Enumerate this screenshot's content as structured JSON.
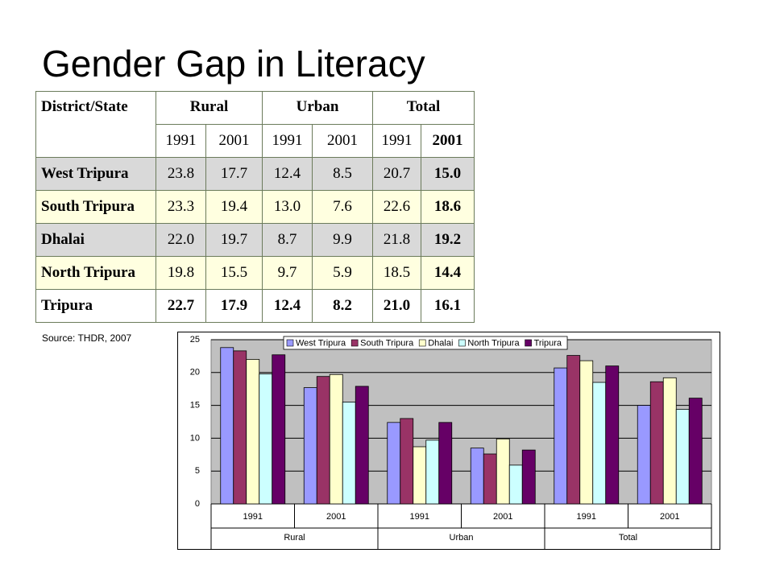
{
  "title": "Gender Gap in Literacy",
  "table": {
    "district_header": "District/State",
    "groups": [
      "Rural",
      "Urban",
      "Total"
    ],
    "years": [
      "1991",
      "2001",
      "1991",
      "2001",
      "1991",
      "2001"
    ],
    "rows": [
      [
        "West Tripura",
        "23.8",
        "17.7",
        "12.4",
        "8.5",
        "20.7",
        "15.0"
      ],
      [
        "South Tripura",
        "23.3",
        "19.4",
        "13.0",
        "7.6",
        "22.6",
        "18.6"
      ],
      [
        "Dhalai",
        "22.0",
        "19.7",
        "8.7",
        "9.9",
        "21.8",
        "19.2"
      ],
      [
        "North Tripura",
        "19.8",
        "15.5",
        "9.7",
        "5.9",
        "18.5",
        "14.4"
      ],
      [
        "Tripura",
        "22.7",
        "17.9",
        "12.4",
        "8.2",
        "21.0",
        "16.1"
      ]
    ]
  },
  "source": "Source: THDR, 2007",
  "chart_data": {
    "type": "bar",
    "categories": [
      "1991",
      "2001",
      "1991",
      "2001",
      "1991",
      "2001"
    ],
    "groups": [
      "Rural",
      "Urban",
      "Total"
    ],
    "series": [
      {
        "name": "West Tripura",
        "color": "#9999ff",
        "values": [
          23.8,
          17.7,
          12.4,
          8.5,
          20.7,
          15.0
        ]
      },
      {
        "name": "South Tripura",
        "color": "#993366",
        "values": [
          23.3,
          19.4,
          13.0,
          7.6,
          22.6,
          18.6
        ]
      },
      {
        "name": "Dhalai",
        "color": "#ffffcc",
        "values": [
          22.0,
          19.7,
          8.7,
          9.9,
          21.8,
          19.2
        ]
      },
      {
        "name": "North Tripura",
        "color": "#ccffff",
        "values": [
          19.8,
          15.5,
          9.7,
          5.9,
          18.5,
          14.4
        ]
      },
      {
        "name": "Tripura",
        "color": "#660066",
        "values": [
          22.7,
          17.9,
          12.4,
          8.2,
          21.0,
          16.1
        ]
      }
    ],
    "ylim": [
      0,
      25
    ],
    "yticks": [
      0,
      5,
      10,
      15,
      20,
      25
    ],
    "grid": true,
    "legend": "top"
  }
}
